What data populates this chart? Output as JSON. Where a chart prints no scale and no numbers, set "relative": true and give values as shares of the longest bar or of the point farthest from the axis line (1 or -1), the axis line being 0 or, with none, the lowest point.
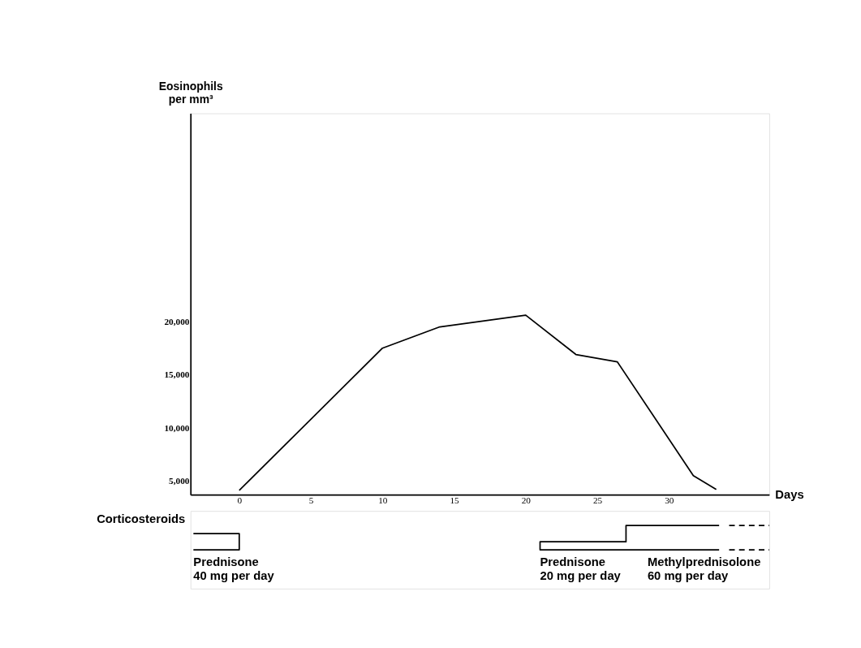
{
  "chart_data": [
    {
      "type": "line",
      "xlabel": "Days",
      "ylabel": "Eosinophils\nper mm³",
      "xlim": [
        -3.4,
        37
      ],
      "ylim": [
        3700,
        39600
      ],
      "xticks": [
        0,
        5,
        10,
        15,
        20,
        25,
        30
      ],
      "yticks": [
        {
          "value": 5000,
          "label": "5,000"
        },
        {
          "value": 10000,
          "label": "10,000"
        },
        {
          "value": 15000,
          "label": "15,000"
        },
        {
          "value": 20000,
          "label": "20,000"
        }
      ],
      "grid": false,
      "series": [
        {
          "color": "#000000",
          "x": [
            0,
            10,
            14,
            20,
            23.5,
            26.4,
            31.7,
            33.3
          ],
          "values": [
            4100,
            17500,
            19500,
            20600,
            16900,
            16200,
            5500,
            4200
          ]
        }
      ]
    },
    {
      "type": "line",
      "relative": true,
      "xlim": [
        -3.4,
        37
      ],
      "ylabel": "Corticosteroids",
      "series": [
        {
          "color": "#000000",
          "x": [
            -3.2,
            0,
            0,
            -3.2
          ],
          "values": [
            0.67,
            0.67,
            0,
            0
          ],
          "line_style": "solid"
        },
        {
          "color": "#000000",
          "x": [
            33.5,
            21,
            21,
            27,
            27,
            33.5
          ],
          "values": [
            0,
            0,
            0.33,
            0.33,
            1,
            1
          ],
          "line_style": "solid"
        },
        {
          "color": "#000000",
          "x": [
            34.2,
            37
          ],
          "values": [
            1,
            1
          ],
          "line_style": "dashed"
        },
        {
          "color": "#000000",
          "x": [
            34.2,
            37
          ],
          "values": [
            0,
            0
          ],
          "line_style": "dashed"
        }
      ],
      "annotations": [
        {
          "text": "Prednisone\n40 mg per day",
          "x": -3.2,
          "y": 0
        },
        {
          "text": "Prednisone\n20 mg per day",
          "x": 21,
          "y": 0
        },
        {
          "text": "Methylprednisolone\n60 mg per day",
          "x": 28.5,
          "y": 0
        }
      ]
    }
  ]
}
